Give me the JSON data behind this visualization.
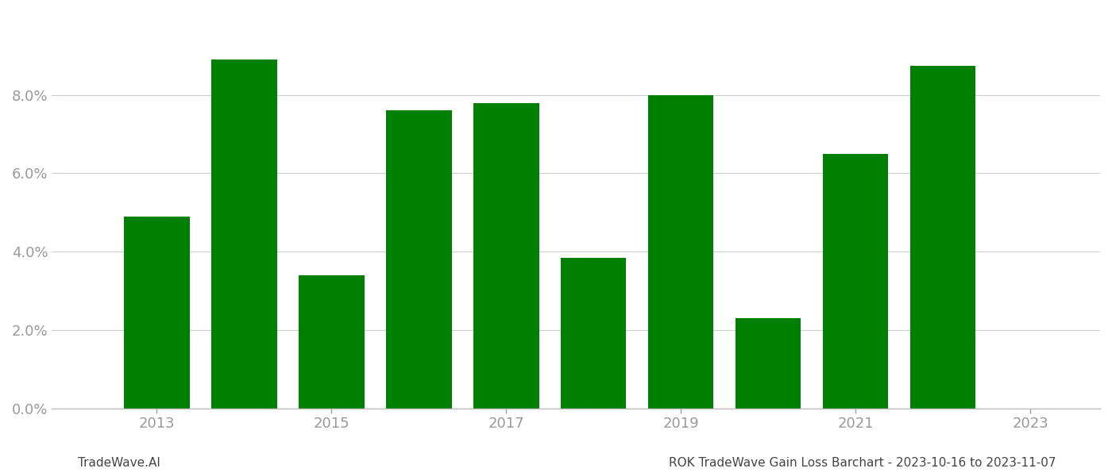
{
  "years": [
    2013,
    2014,
    2015,
    2016,
    2017,
    2018,
    2019,
    2020,
    2021,
    2022
  ],
  "values": [
    0.049,
    0.089,
    0.034,
    0.076,
    0.078,
    0.0385,
    0.08,
    0.023,
    0.065,
    0.0875
  ],
  "bar_color": "#008000",
  "background_color": "#ffffff",
  "ylabel_ticks": [
    0.0,
    0.02,
    0.04,
    0.06,
    0.08
  ],
  "ytick_labels": [
    "0.0%",
    "2.0%",
    "4.0%",
    "6.0%",
    "8.0%"
  ],
  "xtick_positions": [
    2013,
    2015,
    2017,
    2019,
    2021,
    2023
  ],
  "xlim": [
    2011.8,
    2023.8
  ],
  "ylim": [
    0.0,
    0.1
  ],
  "footer_left": "TradeWave.AI",
  "footer_right": "ROK TradeWave Gain Loss Barchart - 2023-10-16 to 2023-11-07",
  "footer_fontsize": 11,
  "tick_label_color": "#999999",
  "grid_color": "#cccccc",
  "bar_width": 0.75
}
